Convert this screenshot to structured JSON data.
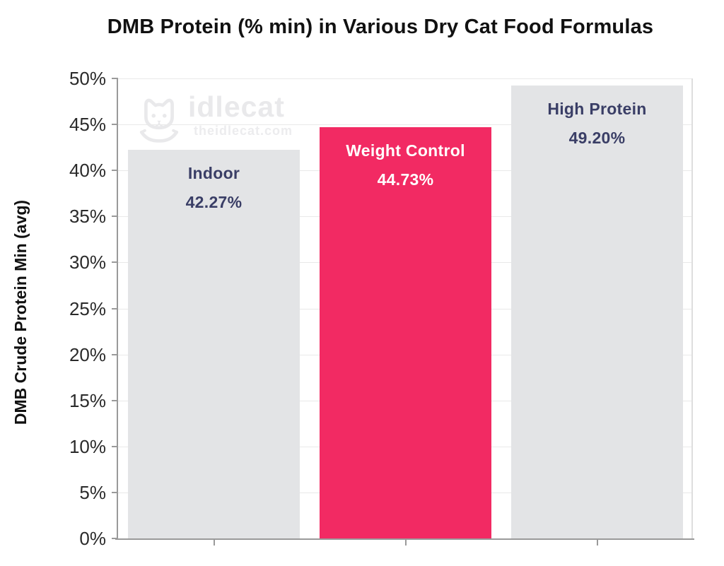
{
  "title": "DMB Protein (% min) in Various Dry Cat Food Formulas",
  "watermark": {
    "brand": "idlecat",
    "url": "theidlecat.com",
    "icon": "cat-icon"
  },
  "colors": {
    "accent_pink": "#F22A63",
    "bar_gray": "#E3E4E6",
    "label_navy": "#3A3E66",
    "label_white": "#FFFFFF",
    "gridline": "#E9E9E9",
    "axis": "#9A9A9A",
    "tick_text": "#2A2A2A",
    "watermark_gray": "#E9E9EB"
  },
  "chart_data": {
    "type": "bar",
    "categories": [
      "Indoor",
      "Weight Control",
      "High Protein"
    ],
    "values": [
      42.27,
      44.73,
      49.2
    ],
    "value_labels": [
      "42.27%",
      "44.73%",
      "49.20%"
    ],
    "bar_colors": [
      "#E3E4E6",
      "#F22A63",
      "#E3E4E6"
    ],
    "bar_label_colors": [
      "#3A3E66",
      "#FFFFFF",
      "#3A3E66"
    ],
    "title": "DMB Protein (% min) in Various Dry Cat Food Formulas",
    "xlabel": "",
    "ylabel": "DMB Crude Protein Min (avg)",
    "ylim": [
      0,
      50
    ],
    "ytick_step": 5,
    "ytick_values": [
      0,
      5,
      10,
      15,
      20,
      25,
      30,
      35,
      40,
      45,
      50
    ],
    "ytick_labels": [
      "0%",
      "5%",
      "10%",
      "15%",
      "20%",
      "25%",
      "30%",
      "35%",
      "40%",
      "45%",
      "50%"
    ],
    "grid": "horizontal-only",
    "legend": "none",
    "bar_labels_position": "inside-top",
    "x_ticks": "at-bar-centers"
  }
}
